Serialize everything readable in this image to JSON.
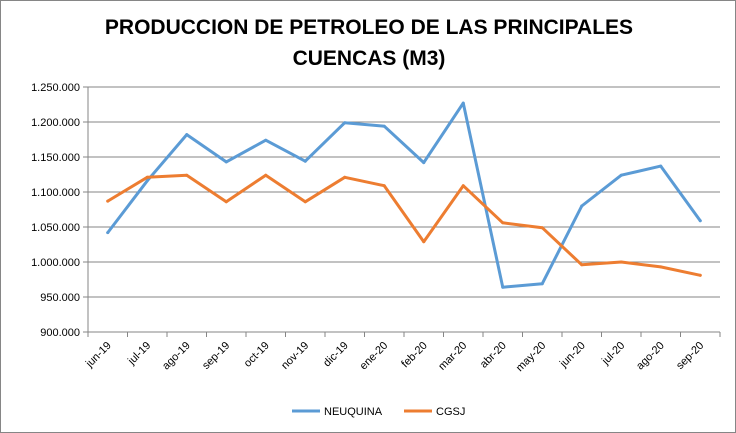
{
  "chart_data": {
    "type": "line",
    "title_lines": [
      "PRODUCCION DE PETROLEO DE LAS PRINCIPALES",
      "CUENCAS (M3)"
    ],
    "xlabel": "",
    "ylabel": "",
    "categories": [
      "jun-19",
      "jul-19",
      "ago-19",
      "sep-19",
      "oct-19",
      "nov-19",
      "dic-19",
      "ene-20",
      "feb-20",
      "mar-20",
      "abr-20",
      "may-20",
      "jun-20",
      "jul-20",
      "ago-20",
      "sep-20"
    ],
    "ylim": [
      900000,
      1250000
    ],
    "yticks": [
      900000,
      950000,
      1000000,
      1050000,
      1100000,
      1150000,
      1200000,
      1250000
    ],
    "ytick_labels": [
      "900.000",
      "950.000",
      "1.000.000",
      "1.050.000",
      "1.100.000",
      "1.150.000",
      "1.200.000",
      "1.250.000"
    ],
    "grid": true,
    "legend_position": "bottom",
    "series": [
      {
        "name": "NEUQUINA",
        "color": "#5B9BD5",
        "values": [
          1042000,
          1116000,
          1182000,
          1143000,
          1174000,
          1144000,
          1199000,
          1194000,
          1142000,
          1227000,
          964000,
          969000,
          1080000,
          1124000,
          1137000,
          1059000
        ]
      },
      {
        "name": "CGSJ",
        "color": "#ED7D31",
        "values": [
          1087000,
          1121000,
          1124000,
          1086000,
          1124000,
          1086000,
          1121000,
          1109000,
          1029000,
          1109000,
          1056000,
          1049000,
          996000,
          1000000,
          993000,
          981000
        ]
      }
    ]
  }
}
